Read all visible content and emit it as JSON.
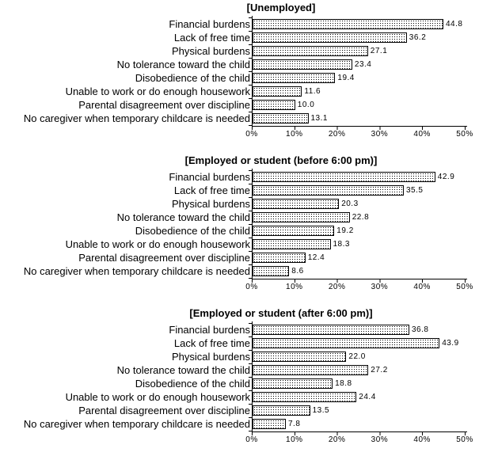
{
  "page": {
    "background": "#ffffff",
    "text_color": "#000000",
    "axis_color": "#000000"
  },
  "chart_data": [
    {
      "type": "bar",
      "orientation": "horizontal",
      "title": "[Unemployed]",
      "categories": [
        "Financial burdens",
        "Lack of free time",
        "Physical burdens",
        "No tolerance toward the child",
        "Disobedience of the child",
        "Unable to work or do enough housework",
        "Parental disagreement over discipline",
        "No caregiver when temporary childcare is needed"
      ],
      "values": [
        44.8,
        36.2,
        27.1,
        23.4,
        19.4,
        11.6,
        10.0,
        13.1
      ],
      "value_labels": [
        "44.8",
        "36.2",
        "27.1",
        "23.4",
        "19.4",
        "11.6",
        "10.0",
        "13.1"
      ],
      "x_tick_labels": [
        "0%",
        "10%",
        "20%",
        "30%",
        "40%",
        "50%"
      ],
      "xlim": [
        0,
        50
      ],
      "xlabel": "",
      "ylabel": "",
      "grid": false,
      "legend": false,
      "bar_fill": "#ffffff",
      "bar_pattern": "black-dot-stipple",
      "bar_border": "#000000"
    },
    {
      "type": "bar",
      "orientation": "horizontal",
      "title": "[Employed or student (before 6:00 pm)]",
      "categories": [
        "Financial burdens",
        "Lack of free time",
        "Physical burdens",
        "No tolerance toward the child",
        "Disobedience of the child",
        "Unable to work or do enough housework",
        "Parental disagreement over discipline",
        "No caregiver when temporary childcare is needed"
      ],
      "values": [
        42.9,
        35.5,
        20.3,
        22.8,
        19.2,
        18.3,
        12.4,
        8.6
      ],
      "value_labels": [
        "42.9",
        "35.5",
        "20.3",
        "22.8",
        "19.2",
        "18.3",
        "12.4",
        "8.6"
      ],
      "x_tick_labels": [
        "0%",
        "10%",
        "20%",
        "30%",
        "40%",
        "50%"
      ],
      "xlim": [
        0,
        50
      ],
      "xlabel": "",
      "ylabel": "",
      "grid": false,
      "legend": false,
      "bar_fill": "#ffffff",
      "bar_pattern": "black-dot-stipple",
      "bar_border": "#000000"
    },
    {
      "type": "bar",
      "orientation": "horizontal",
      "title": "[Employed or student (after 6:00 pm)]",
      "categories": [
        "Financial burdens",
        "Lack of free time",
        "Physical burdens",
        "No tolerance toward the child",
        "Disobedience of the child",
        "Unable to work or do enough housework",
        "Parental disagreement over discipline",
        "No caregiver when temporary childcare is needed"
      ],
      "values": [
        36.8,
        43.9,
        22.0,
        27.2,
        18.8,
        24.4,
        13.5,
        7.8
      ],
      "value_labels": [
        "36.8",
        "43.9",
        "22.0",
        "27.2",
        "18.8",
        "24.4",
        "13.5",
        "7.8"
      ],
      "x_tick_labels": [
        "0%",
        "10%",
        "20%",
        "30%",
        "40%",
        "50%"
      ],
      "xlim": [
        0,
        50
      ],
      "xlabel": "",
      "ylabel": "",
      "grid": false,
      "legend": false,
      "bar_fill": "#ffffff",
      "bar_pattern": "black-dot-stipple",
      "bar_border": "#000000"
    }
  ]
}
